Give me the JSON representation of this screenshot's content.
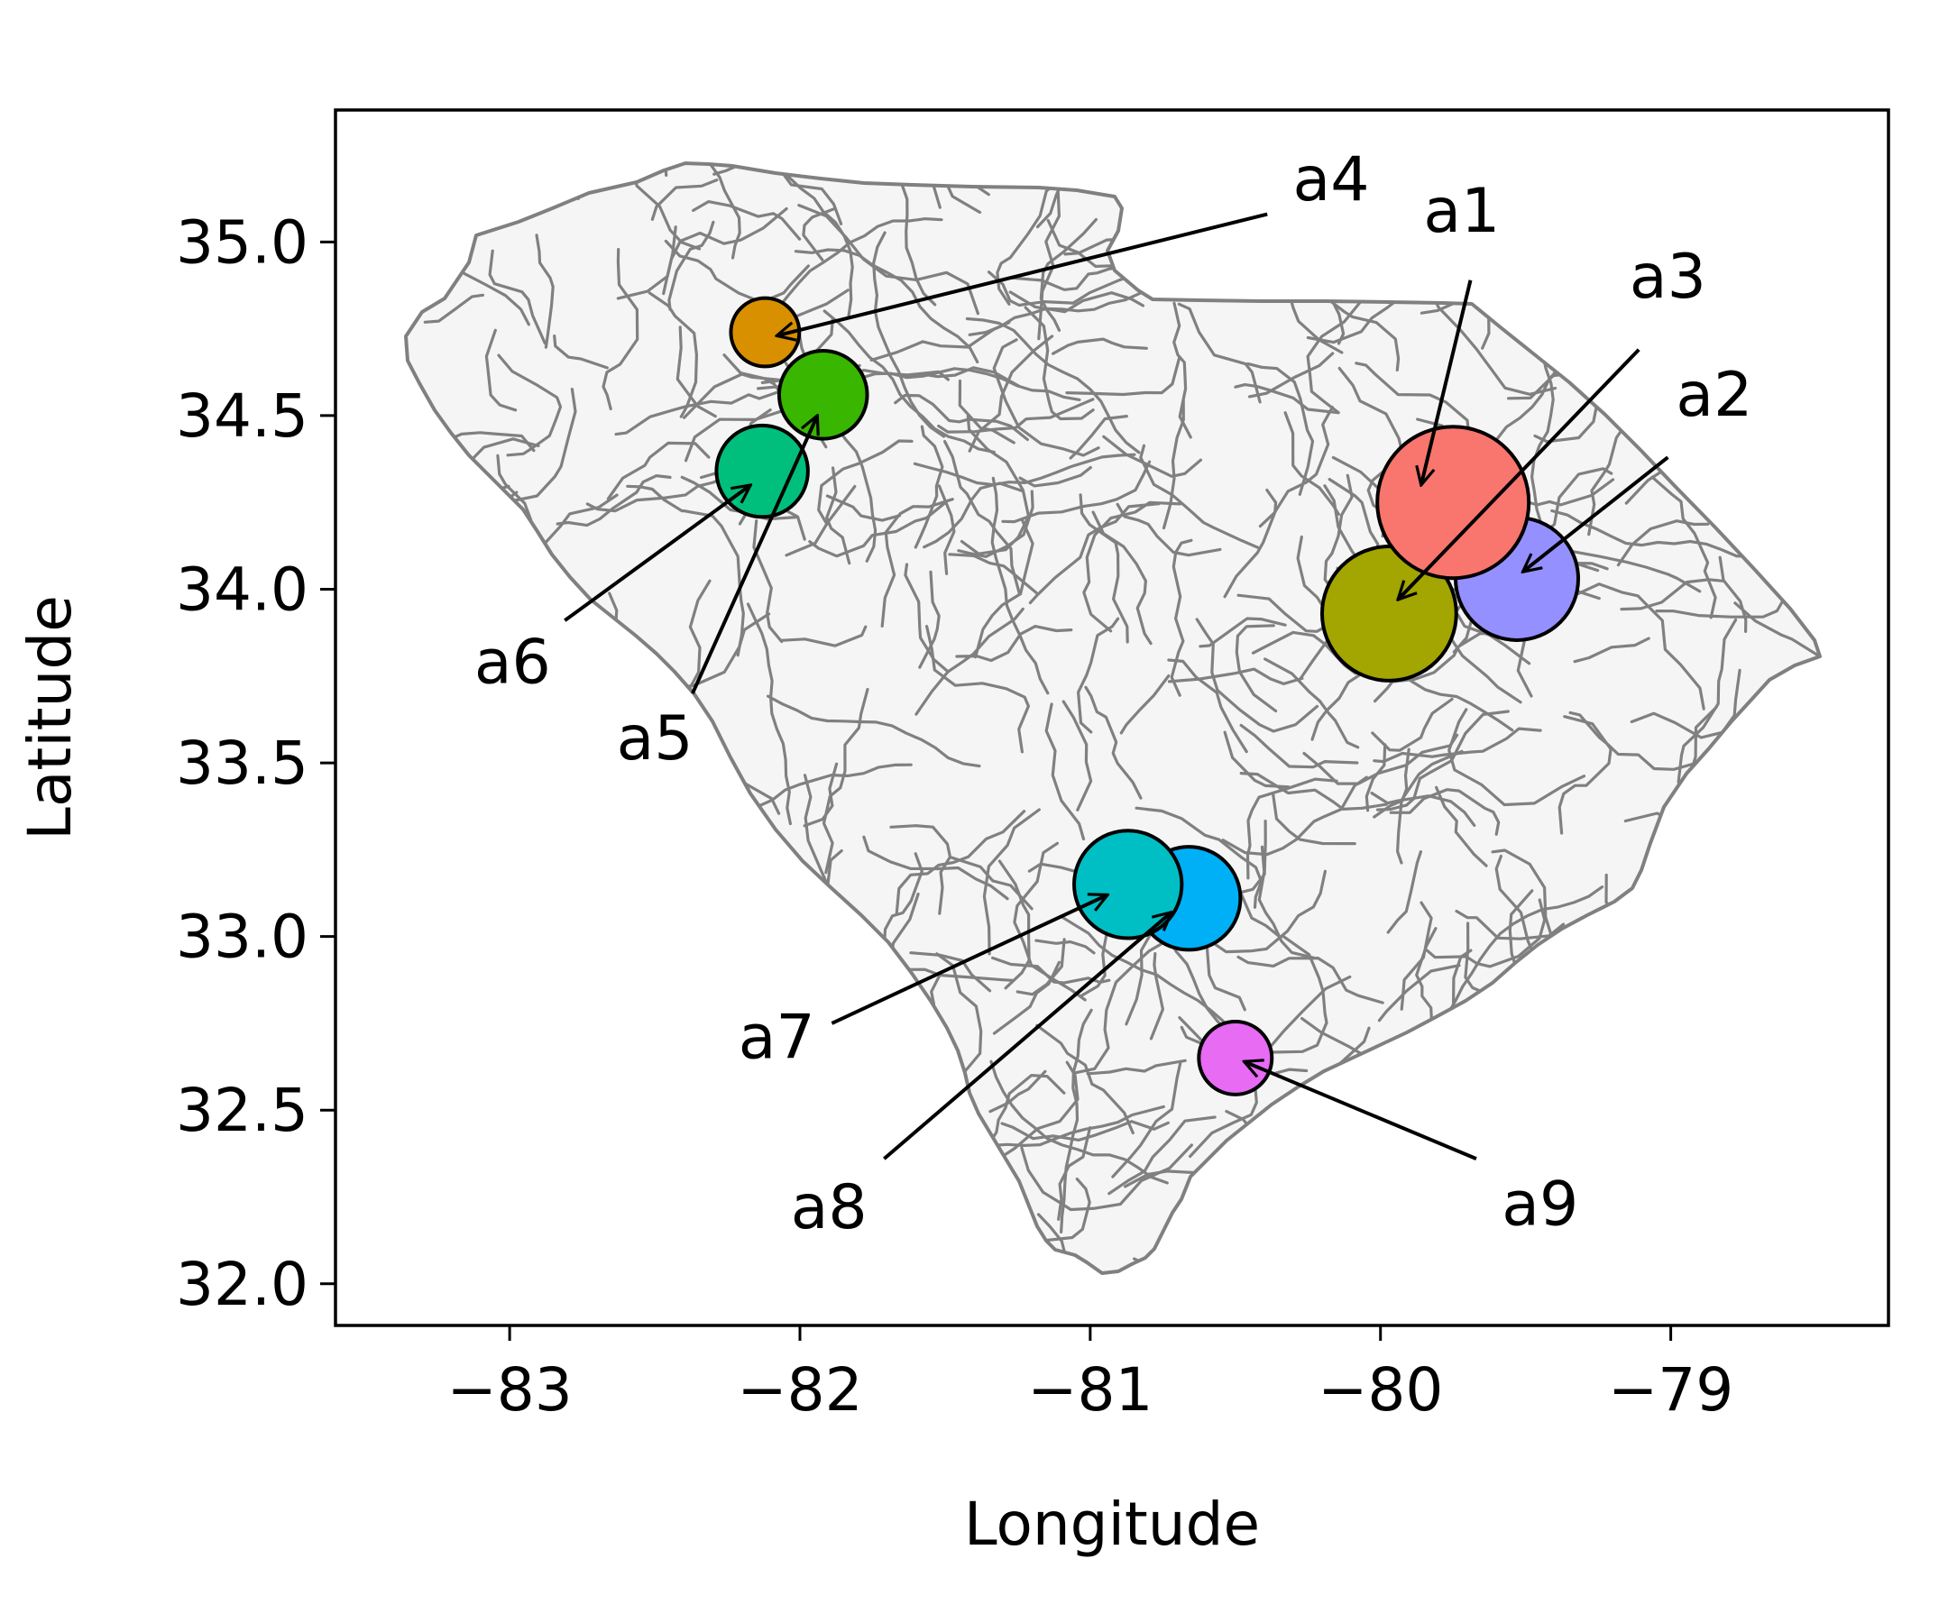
{
  "chart_data": {
    "type": "scatter",
    "title": "",
    "xlabel": "Longitude",
    "ylabel": "Latitude",
    "xlim": [
      -83.6,
      -78.25
    ],
    "ylim": [
      31.88,
      35.38
    ],
    "xticks": [
      -83,
      -82,
      -81,
      -80,
      -79
    ],
    "xtick_labels": [
      "−83",
      "−82",
      "−81",
      "−80",
      "−79"
    ],
    "yticks": [
      32.0,
      32.5,
      33.0,
      33.5,
      34.0,
      34.5,
      35.0
    ],
    "ytick_labels": [
      "32.0",
      "32.5",
      "33.0",
      "33.5",
      "34.0",
      "34.5",
      "35.0"
    ],
    "grid": false,
    "basemap": "South Carolina boundary with internal tract boundaries (light gray fill, gray outlines)",
    "points": [
      {
        "label": "a1",
        "lon": -79.75,
        "lat": 34.25,
        "size": 1.0,
        "color": "#f8766d"
      },
      {
        "label": "a2",
        "lon": -79.53,
        "lat": 34.03,
        "size": 0.75,
        "color": "#9590ff"
      },
      {
        "label": "a3",
        "lon": -79.97,
        "lat": 33.93,
        "size": 0.85,
        "color": "#a3a500"
      },
      {
        "label": "a4",
        "lon": -82.12,
        "lat": 34.74,
        "size": 0.28,
        "color": "#d89000"
      },
      {
        "label": "a5",
        "lon": -81.92,
        "lat": 34.56,
        "size": 0.45,
        "color": "#39b600"
      },
      {
        "label": "a6",
        "lon": -82.13,
        "lat": 34.34,
        "size": 0.48,
        "color": "#00bf7d"
      },
      {
        "label": "a7",
        "lon": -80.87,
        "lat": 33.15,
        "size": 0.62,
        "color": "#00bfc4"
      },
      {
        "label": "a8",
        "lon": -80.66,
        "lat": 33.11,
        "size": 0.58,
        "color": "#00b0f6"
      },
      {
        "label": "a9",
        "lon": -80.5,
        "lat": 32.65,
        "size": 0.32,
        "color": "#e76bf3"
      }
    ],
    "annotations": [
      {
        "text": "a1",
        "text_lon": -79.72,
        "text_lat": 35.03,
        "arrow_start_lon": -79.69,
        "arrow_start_lat": 34.89,
        "arrow_end_lon": -79.86,
        "arrow_end_lat": 34.3
      },
      {
        "text": "a2",
        "text_lon": -78.85,
        "text_lat": 34.5,
        "arrow_start_lon": -79.01,
        "arrow_start_lat": 34.38,
        "arrow_end_lon": -79.51,
        "arrow_end_lat": 34.05
      },
      {
        "text": "a3",
        "text_lon": -79.01,
        "text_lat": 34.84,
        "arrow_start_lon": -79.11,
        "arrow_start_lat": 34.69,
        "arrow_end_lon": -79.94,
        "arrow_end_lat": 33.97
      },
      {
        "text": "a4",
        "text_lon": -80.17,
        "text_lat": 35.12,
        "arrow_start_lon": -80.39,
        "arrow_start_lat": 35.08,
        "arrow_end_lon": -82.08,
        "arrow_end_lat": 34.73
      },
      {
        "text": "a5",
        "text_lon": -82.5,
        "text_lat": 33.51,
        "arrow_start_lon": -82.37,
        "arrow_start_lat": 33.7,
        "arrow_end_lon": -81.94,
        "arrow_end_lat": 34.5
      },
      {
        "text": "a6",
        "text_lon": -82.99,
        "text_lat": 33.73,
        "arrow_start_lon": -82.81,
        "arrow_start_lat": 33.91,
        "arrow_end_lon": -82.17,
        "arrow_end_lat": 34.3
      },
      {
        "text": "a7",
        "text_lon": -82.08,
        "text_lat": 32.65,
        "arrow_start_lon": -81.89,
        "arrow_start_lat": 32.75,
        "arrow_end_lon": -80.94,
        "arrow_end_lat": 33.12
      },
      {
        "text": "a8",
        "text_lon": -81.9,
        "text_lat": 32.16,
        "arrow_start_lon": -81.71,
        "arrow_start_lat": 32.36,
        "arrow_end_lon": -80.72,
        "arrow_end_lat": 33.07
      },
      {
        "text": "a9",
        "text_lon": -79.45,
        "text_lat": 32.17,
        "arrow_start_lon": -79.67,
        "arrow_start_lat": 32.36,
        "arrow_end_lon": -80.47,
        "arrow_end_lat": 32.64
      }
    ]
  },
  "colors": {
    "map_fill": "#f5f5f5",
    "map_edge": "#808080",
    "marker_edge": "#000000"
  }
}
